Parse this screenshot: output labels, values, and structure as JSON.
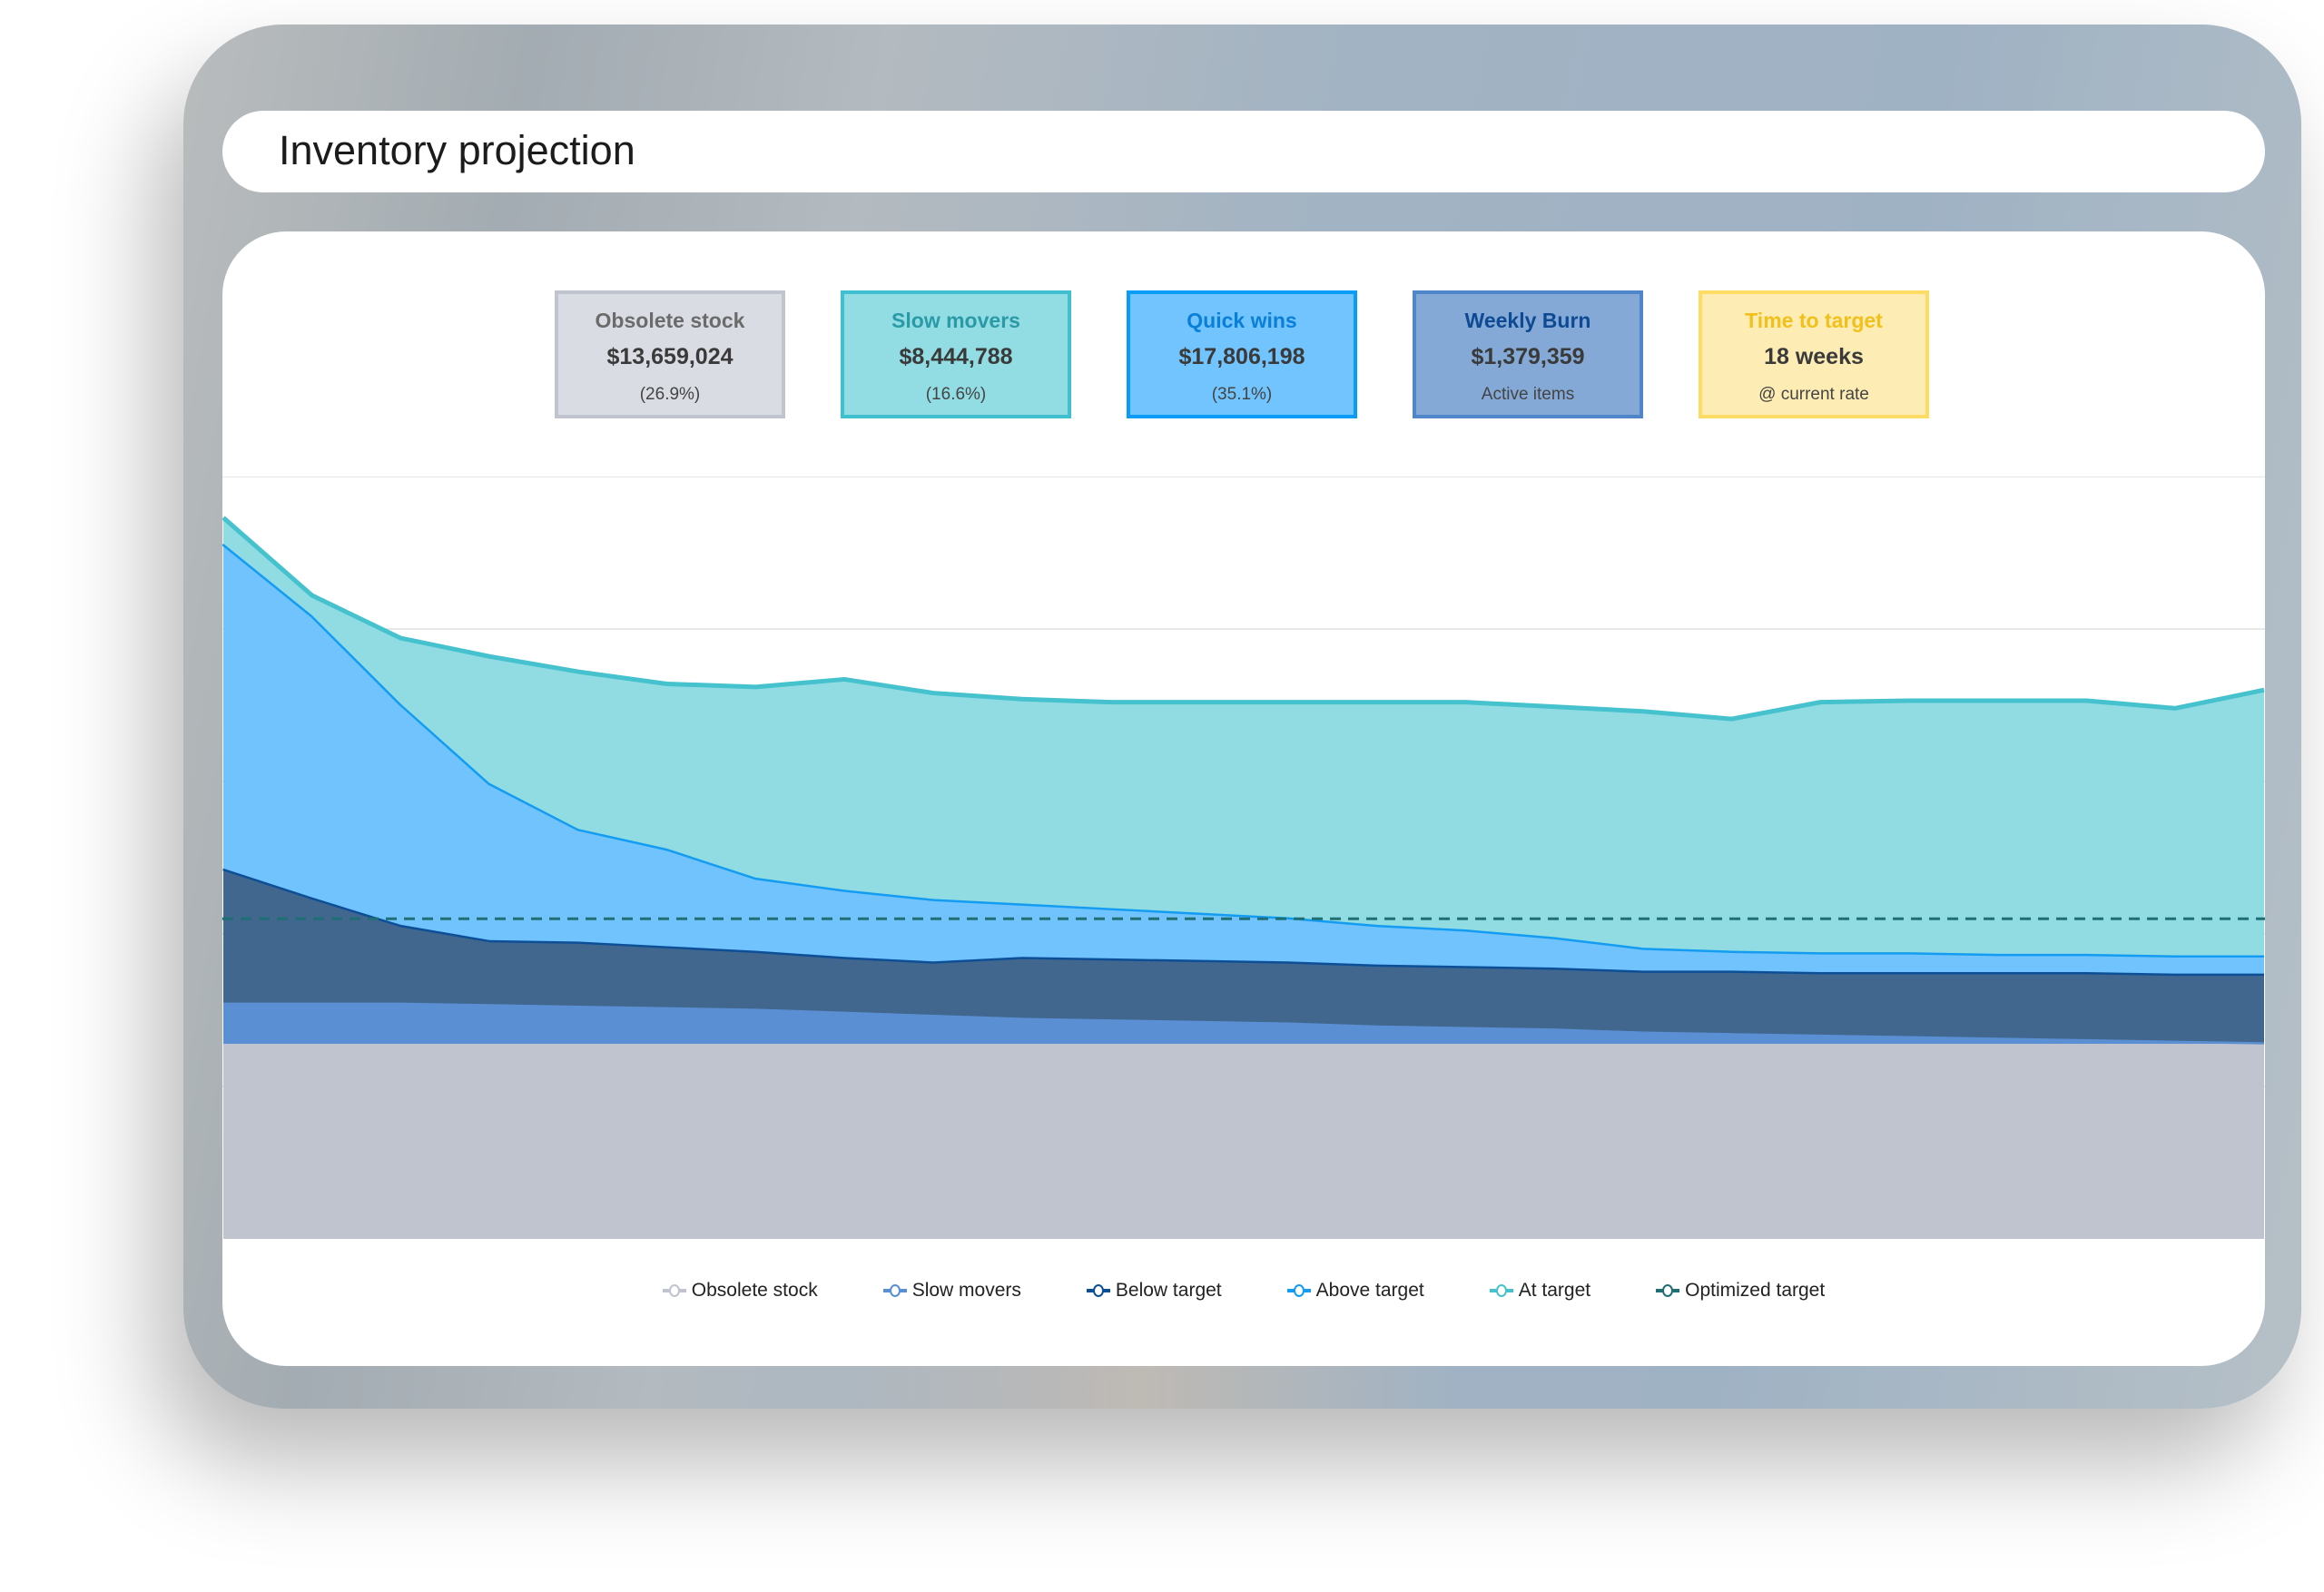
{
  "header": {
    "title": "Inventory projection"
  },
  "kpis": [
    {
      "label": "Obsolete stock",
      "value": "$13,659,024",
      "sub": "(26.9%)",
      "bg": "#d9dce3",
      "border": "#c0c4cf",
      "label_color": "#6b6b6b"
    },
    {
      "label": "Slow movers",
      "value": "$8,444,788",
      "sub": "(16.6%)",
      "bg": "#92dde4",
      "border": "#3fbfcf",
      "label_color": "#2a9aa6"
    },
    {
      "label": "Quick wins",
      "value": "$17,806,198",
      "sub": "(35.1%)",
      "bg": "#71c4fd",
      "border": "#0a9cf7",
      "label_color": "#0a7fd8"
    },
    {
      "label": "Weekly Burn",
      "value": "$1,379,359",
      "sub": "Active items",
      "bg": "#84a9d6",
      "border": "#4f86c9",
      "label_color": "#0e4a93"
    },
    {
      "label": "Time to target",
      "value": "18 weeks",
      "sub": "@ current rate",
      "bg": "#fdecb3",
      "border": "#fddc66",
      "label_color": "#f2c01a"
    }
  ],
  "chart_data": {
    "type": "area",
    "stacked": true,
    "ylim": [
      0,
      5
    ],
    "grid": true,
    "legend_position": "bottom",
    "x": [
      0,
      1,
      2,
      3,
      4,
      5,
      6,
      7,
      8,
      9,
      10,
      11,
      12,
      13,
      14,
      15,
      16,
      17,
      18,
      19,
      20,
      21,
      22,
      23
    ],
    "series": [
      {
        "name": "Obsolete stock",
        "color": "#c0c4cf",
        "line": "#c0c4cf",
        "values": [
          1.28,
          1.28,
          1.28,
          1.28,
          1.28,
          1.28,
          1.28,
          1.28,
          1.28,
          1.28,
          1.28,
          1.28,
          1.28,
          1.28,
          1.28,
          1.28,
          1.28,
          1.28,
          1.28,
          1.28,
          1.28,
          1.28,
          1.28,
          1.28
        ]
      },
      {
        "name": "Slow movers",
        "color": "#5b8fd4",
        "line": "#5b8fd4",
        "values": [
          0.27,
          0.27,
          0.27,
          0.26,
          0.25,
          0.24,
          0.23,
          0.21,
          0.19,
          0.17,
          0.16,
          0.15,
          0.14,
          0.12,
          0.11,
          0.1,
          0.08,
          0.07,
          0.06,
          0.05,
          0.04,
          0.03,
          0.02,
          0.01
        ]
      },
      {
        "name": "Below target",
        "color": "#41678f",
        "line": "#0d4f96",
        "values": [
          0.88,
          0.69,
          0.51,
          0.42,
          0.42,
          0.4,
          0.38,
          0.36,
          0.35,
          0.4,
          0.4,
          0.4,
          0.4,
          0.4,
          0.4,
          0.4,
          0.4,
          0.41,
          0.41,
          0.42,
          0.43,
          0.44,
          0.44,
          0.45
        ]
      },
      {
        "name": "Above target",
        "color": "#70c3fd",
        "line": "#139cf1",
        "values": [
          2.13,
          1.85,
          1.45,
          1.03,
          0.74,
          0.64,
          0.48,
          0.44,
          0.41,
          0.35,
          0.33,
          0.31,
          0.29,
          0.26,
          0.24,
          0.2,
          0.15,
          0.13,
          0.13,
          0.13,
          0.12,
          0.12,
          0.12,
          0.12
        ]
      },
      {
        "name": "At target",
        "color": "#91dce3",
        "line": "#45c2cd",
        "values": [
          0.17,
          0.13,
          0.43,
          0.83,
          1.03,
          1.08,
          1.25,
          1.38,
          1.35,
          1.34,
          1.35,
          1.38,
          1.41,
          1.46,
          1.49,
          1.51,
          1.55,
          1.52,
          1.64,
          1.65,
          1.66,
          1.66,
          1.62,
          1.74
        ]
      }
    ],
    "reference_line": {
      "name": "Optimized target",
      "value": 2.1,
      "color": "#1f6f74",
      "style": "dashed"
    }
  }
}
